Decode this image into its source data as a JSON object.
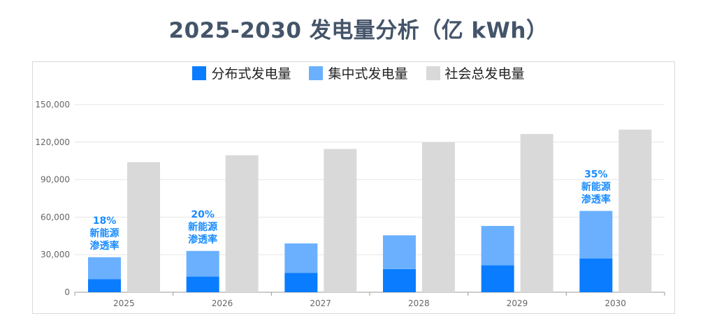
{
  "chart_data": {
    "type": "bar",
    "title": "2025-2030  发电量分析（亿 kWh）",
    "categories": [
      "2025",
      "2026",
      "2027",
      "2028",
      "2029",
      "2030"
    ],
    "series": [
      {
        "name": "分布式发电量",
        "color": "#0a7cff",
        "stack": "renewable",
        "values": [
          10500,
          12500,
          15500,
          18500,
          21500,
          27000
        ]
      },
      {
        "name": "集中式发电量",
        "color": "#6ab0ff",
        "stack": "renewable",
        "values": [
          17500,
          20500,
          23500,
          27000,
          31500,
          38000
        ]
      },
      {
        "name": "社会总发电量",
        "color": "#d9d9d9",
        "stack": "total",
        "values": [
          104000,
          109500,
          114500,
          120000,
          126500,
          130000
        ]
      }
    ],
    "ylim": [
      0,
      150000
    ],
    "yticks": [
      "0",
      "30,000",
      "60,000",
      "90,000",
      "120,000",
      "150,000"
    ],
    "ytick_values": [
      0,
      30000,
      60000,
      90000,
      120000,
      150000
    ],
    "grid": true,
    "legend": "top-center",
    "annotations": [
      {
        "category": "2025",
        "pct": "18%",
        "line1": "新能源",
        "line2": "渗透率"
      },
      {
        "category": "2026",
        "pct": "20%",
        "line1": "新能源",
        "line2": "渗透率"
      },
      {
        "category": "2030",
        "pct": "35%",
        "line1": "新能源",
        "line2": "渗透率"
      }
    ]
  }
}
